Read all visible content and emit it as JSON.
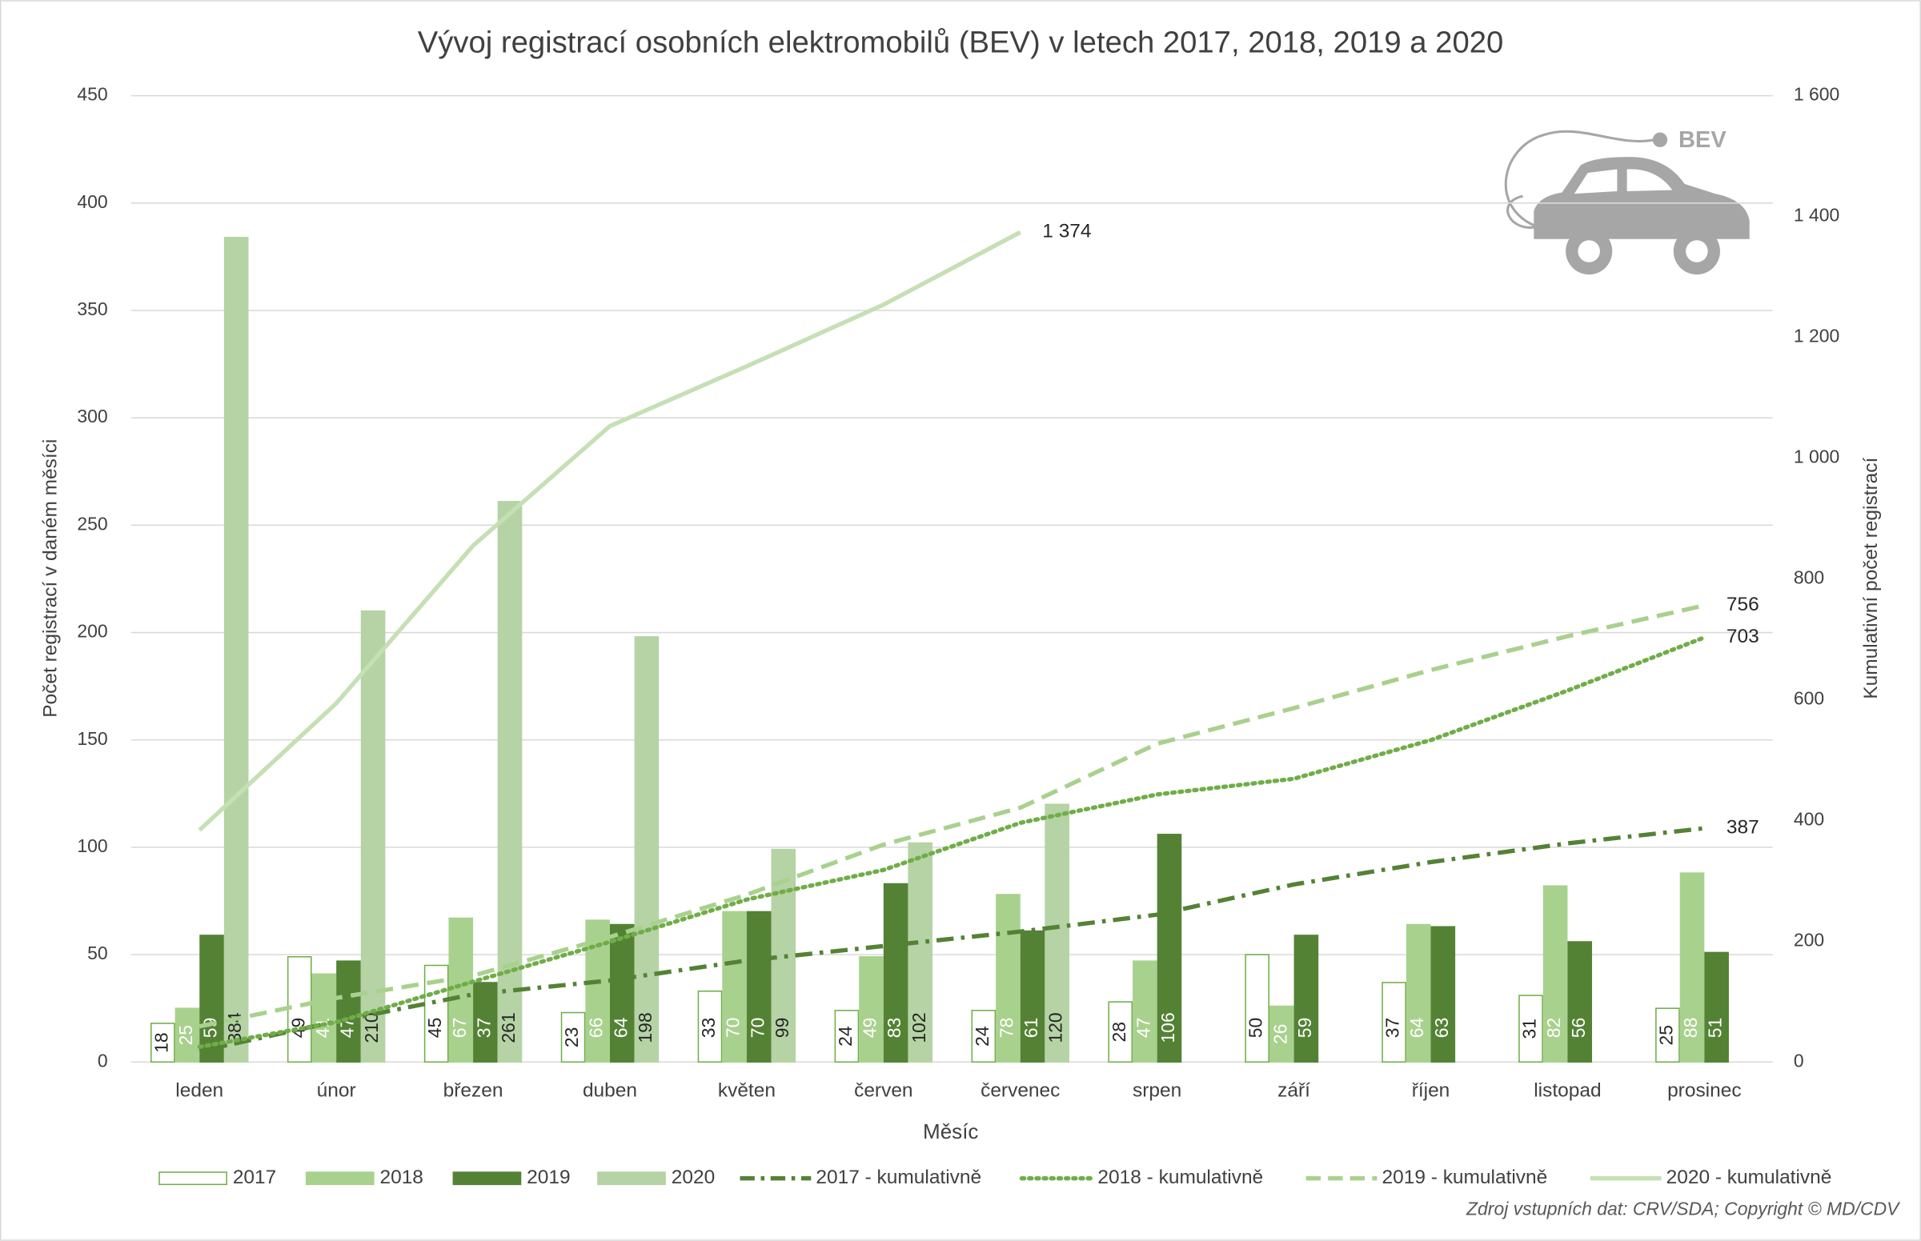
{
  "chart_data": {
    "type": "bar",
    "title": "Vývoj registrací osobních elektromobilů (BEV) v letech 2017, 2018, 2019 a 2020",
    "x_label": "Měsíc",
    "y_label": "Počet registrací v daném měsíci",
    "y2_label": "Kumulativní počet registrací",
    "source": "Zdroj vstupních dat: CRV/SDA; Copyright © MD/CDV",
    "icon_text": "BEV",
    "categories": [
      "leden",
      "únor",
      "březen",
      "duben",
      "květen",
      "červen",
      "červenec",
      "srpen",
      "září",
      "říjen",
      "listopad",
      "prosinec"
    ],
    "ylim": [
      0,
      450
    ],
    "yticks": [
      0,
      50,
      100,
      150,
      200,
      250,
      300,
      350,
      400,
      450
    ],
    "y2lim": [
      0,
      1600
    ],
    "y2ticks": [
      0,
      200,
      400,
      600,
      800,
      {
        "value": 1000,
        "label": "1 000"
      },
      {
        "value": 1200,
        "label": "1 200"
      },
      {
        "value": 1400,
        "label": "1 400"
      },
      {
        "value": 1600,
        "label": "1 600"
      }
    ],
    "grid": true,
    "legend": "bottom",
    "series": [
      {
        "name": "2017",
        "type": "bar",
        "color": "#70ad47",
        "fill": "#ffffff",
        "values": [
          18,
          49,
          45,
          23,
          33,
          24,
          24,
          28,
          50,
          37,
          31,
          25
        ]
      },
      {
        "name": "2018",
        "type": "bar",
        "color": "#a9d18e",
        "fill": "#a9d18e",
        "values": [
          25,
          41,
          67,
          66,
          70,
          49,
          78,
          47,
          26,
          64,
          82,
          88
        ]
      },
      {
        "name": "2019",
        "type": "bar",
        "color": "#548235",
        "fill": "#548235",
        "values": [
          59,
          47,
          37,
          64,
          70,
          83,
          61,
          106,
          59,
          63,
          56,
          51
        ]
      },
      {
        "name": "2020",
        "type": "bar",
        "color": "#b5d3a5",
        "fill": "#b5d3a5",
        "values": [
          384,
          210,
          261,
          198,
          99,
          102,
          120,
          null,
          null,
          null,
          null,
          null
        ]
      },
      {
        "name": "2017 - kumulativně",
        "type": "line",
        "axis": "y2",
        "dash": "dash-dot",
        "color": "#548235",
        "values": [
          18,
          67,
          112,
          135,
          168,
          192,
          216,
          244,
          294,
          331,
          362,
          387
        ]
      },
      {
        "name": "2018 - kumulativně",
        "type": "line",
        "axis": "y2",
        "dash": "dotted",
        "color": "#70ad47",
        "values": [
          25,
          66,
          133,
          199,
          269,
          318,
          396,
          443,
          469,
          533,
          615,
          703
        ]
      },
      {
        "name": "2019 - kumulativně",
        "type": "line",
        "axis": "y2",
        "dash": "dashed",
        "color": "#a9d18e",
        "values": [
          59,
          106,
          143,
          207,
          277,
          360,
          421,
          527,
          586,
          649,
          705,
          756
        ]
      },
      {
        "name": "2020 - kumulativně",
        "type": "line",
        "axis": "y2",
        "dash": "solid",
        "color": "#c5e0b4",
        "values": [
          384,
          594,
          855,
          1053,
          1152,
          1254,
          1374,
          null,
          null,
          null,
          null,
          null
        ],
        "value_labels": [
          null,
          null,
          null,
          null,
          null,
          null,
          "1 374",
          null,
          null,
          null,
          null,
          null
        ]
      }
    ]
  }
}
